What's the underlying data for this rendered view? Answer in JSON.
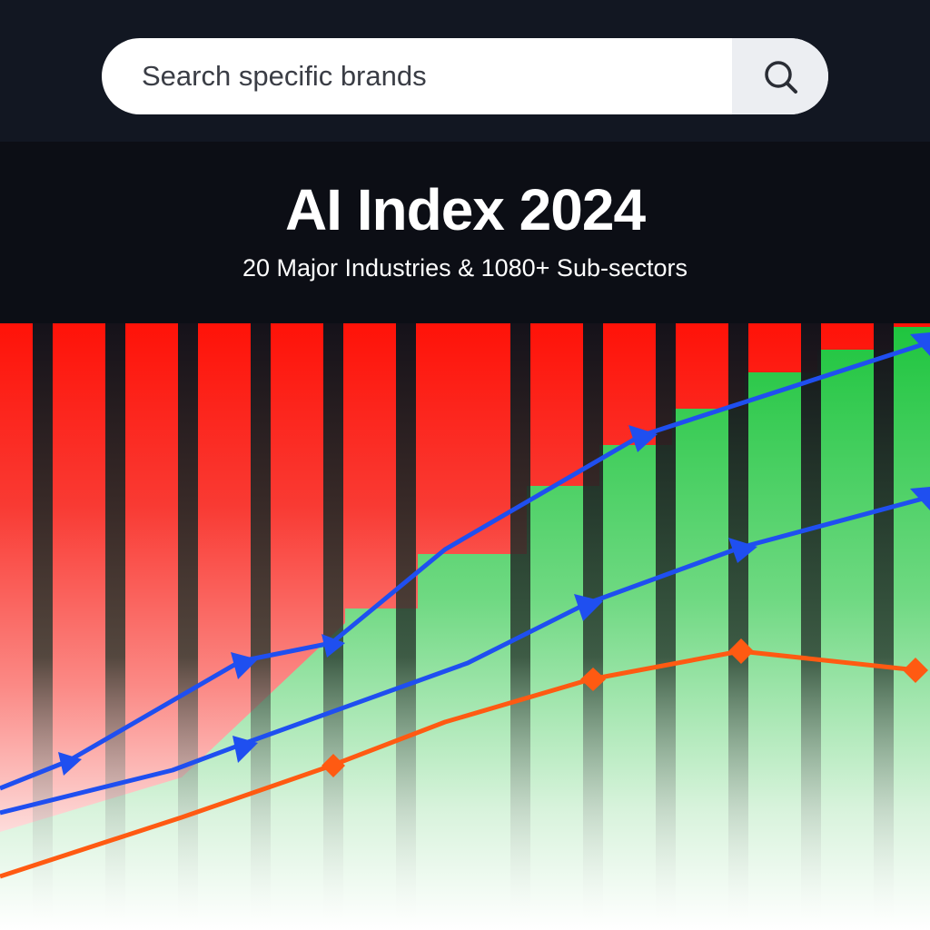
{
  "search": {
    "placeholder": "Search specific brands"
  },
  "header": {
    "title": "AI Index 2024",
    "subtitle": "20 Major Industries & 1080+ Sub-sectors"
  }
}
